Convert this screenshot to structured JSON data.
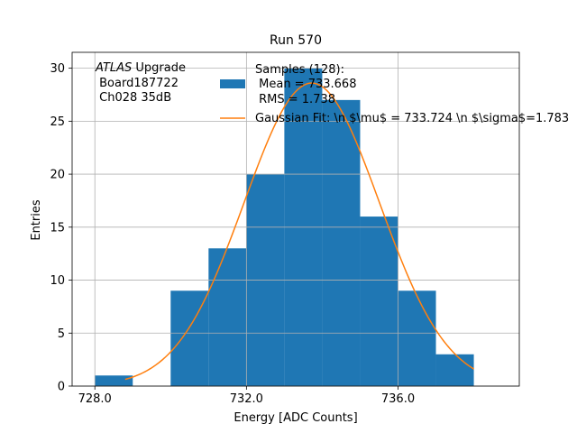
{
  "chart_data": {
    "type": "bar",
    "title": "Run 570",
    "xlabel": "Energy [ADC Counts]",
    "ylabel": "Entries",
    "xlim": [
      727.4,
      739.2
    ],
    "ylim": [
      0,
      31.5
    ],
    "grid": true,
    "x_ticks": [
      728,
      732,
      736
    ],
    "x_tick_labels": [
      "728.0",
      "732.0",
      "736.0"
    ],
    "y_ticks": [
      0,
      5,
      10,
      15,
      20,
      25,
      30
    ],
    "y_tick_labels": [
      "0",
      "5",
      "10",
      "15",
      "20",
      "25",
      "30"
    ],
    "bin_edges": [
      728,
      729,
      730,
      731,
      732,
      733,
      734,
      735,
      736,
      737,
      738
    ],
    "counts": [
      1,
      0,
      9,
      13,
      20,
      30,
      27,
      16,
      9,
      3
    ],
    "gaussian_fit": {
      "amplitude": 28.6,
      "mu": 733.724,
      "sigma": 1.783,
      "x_range": [
        728.8,
        738.0
      ]
    },
    "legend": {
      "location": "upper-right",
      "hist_label_lines": [
        "Samples (128):",
        " Mean = 733.668",
        " RMS = 1.738"
      ],
      "fit_label": "Gaussian Fit: \\n $\\mu$ = 733.724 \\n $\\sigma$=1.783"
    },
    "annotation": {
      "italic": "ATLAS",
      "suffix": " Upgrade",
      "lines": [
        " Board187722",
        " Ch028 35dB"
      ]
    },
    "colors": {
      "hist": "#1f77b4",
      "fit": "#ff7f0e",
      "grid": "#b0b0b0"
    }
  }
}
